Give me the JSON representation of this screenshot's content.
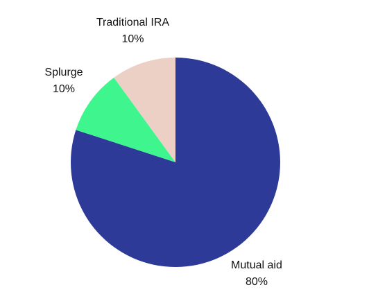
{
  "chart_data": {
    "type": "pie",
    "categories": [
      "Mutual aid",
      "Splurge",
      "Traditional IRA"
    ],
    "values": [
      80,
      10,
      10
    ],
    "value_labels": [
      "80%",
      "10%",
      "10%"
    ],
    "colors": [
      "#2e3a97",
      "#3ef58e",
      "#ecd0c6"
    ]
  }
}
